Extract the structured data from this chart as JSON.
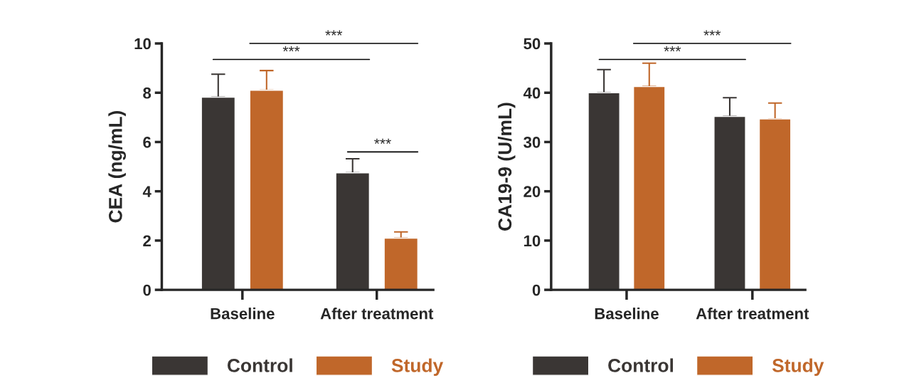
{
  "chart_data": [
    {
      "type": "bar",
      "ylabel": "CEA (ng/mL)",
      "categories": [
        "Baseline",
        "After treatment"
      ],
      "ylim": [
        0,
        10
      ],
      "yticks": [
        0,
        2,
        4,
        6,
        8,
        10
      ],
      "legend": "bottom",
      "grid": false,
      "series": [
        {
          "name": "Control",
          "color": "#3a3634",
          "values": [
            7.82,
            4.75
          ],
          "errors": [
            [
              7.82,
              8.75
            ],
            [
              4.75,
              5.32
            ]
          ]
        },
        {
          "name": "Study",
          "color": "#c0672a",
          "values": [
            8.1,
            2.1
          ],
          "errors": [
            [
              8.1,
              8.9
            ],
            [
              2.1,
              2.35
            ]
          ]
        }
      ],
      "annotations": [
        "***",
        "***",
        "***"
      ]
    },
    {
      "type": "bar",
      "ylabel": "CA19-9 (U/mL)",
      "categories": [
        "Baseline",
        "After treatment"
      ],
      "ylim": [
        0,
        50
      ],
      "yticks": [
        0,
        10,
        20,
        30,
        40,
        50
      ],
      "legend": "bottom",
      "grid": false,
      "series": [
        {
          "name": "Control",
          "color": "#3a3634",
          "values": [
            40.0,
            35.2
          ],
          "errors": [
            [
              40.0,
              44.7
            ],
            [
              35.2,
              39.0
            ]
          ]
        },
        {
          "name": "Study",
          "color": "#c0672a",
          "values": [
            41.25,
            34.7
          ],
          "errors": [
            [
              41.25,
              46.0
            ],
            [
              34.7,
              37.9
            ]
          ]
        }
      ],
      "annotations": [
        "***",
        "***"
      ]
    }
  ]
}
